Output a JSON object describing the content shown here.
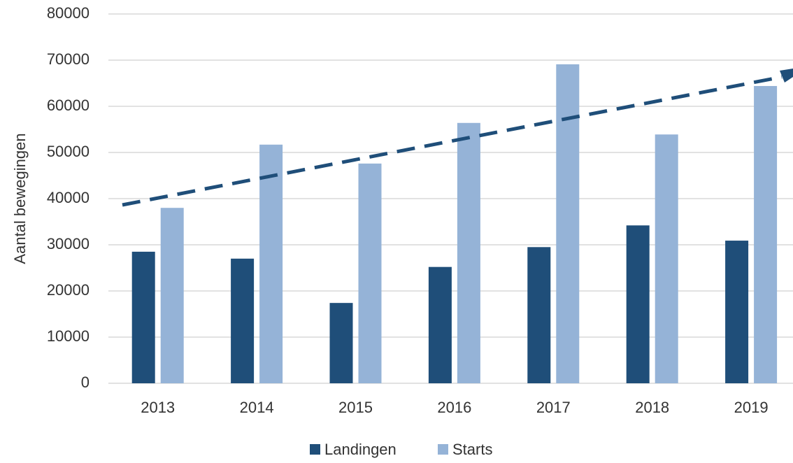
{
  "chart_data": {
    "type": "bar",
    "y_label": "Aantal bewegingen",
    "categories": [
      "2013",
      "2014",
      "2015",
      "2016",
      "2017",
      "2018",
      "2019"
    ],
    "series": [
      {
        "name": "Landingen",
        "color": "#1f4e79",
        "values": [
          28500,
          27000,
          17400,
          25200,
          29500,
          34200,
          30900
        ]
      },
      {
        "name": "Starts",
        "color": "#95b3d7",
        "values": [
          38000,
          51700,
          47600,
          56400,
          69100,
          53900,
          64400
        ]
      }
    ],
    "ylim": [
      0,
      80000
    ],
    "yticks": [
      0,
      10000,
      20000,
      30000,
      40000,
      50000,
      60000,
      70000,
      80000
    ],
    "grid": true,
    "legend": "bottom"
  }
}
